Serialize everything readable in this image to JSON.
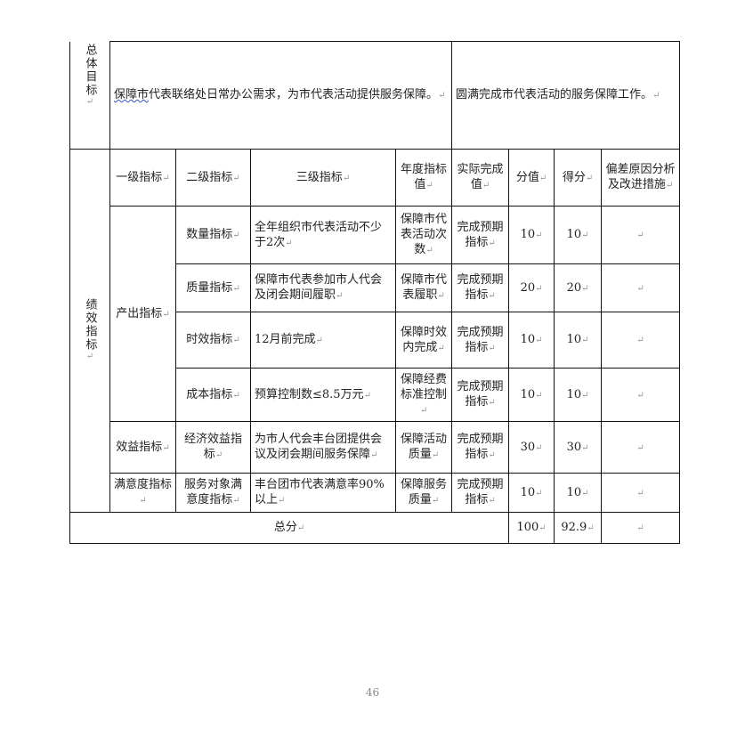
{
  "overall_goal": {
    "label": "总体目标",
    "plan_text_prefix": "保障市",
    "plan_text": "代表联络处日常办公需求，为市代表活动提供服务保障。",
    "actual_text": "圆满完成市代表活动的服务保障工作。"
  },
  "performance_label": "绩效指标",
  "headers": {
    "level1": "一级指标",
    "level2": "二级指标",
    "level3": "三级指标",
    "annual_target": "年度指标值",
    "actual_value": "实际完成值",
    "score_value": "分值",
    "score_got": "得分",
    "deviation": "偏差原因分析及改进措施"
  },
  "level1_output": "产出指标",
  "rows": [
    {
      "level1": "",
      "level2": "数量指标",
      "level3": "全年组织市代表活动不少于2次",
      "target": "保障市代表活动次数",
      "actual": "完成预期指标",
      "value": "10",
      "score": "10",
      "deviation": ""
    },
    {
      "level1": "",
      "level2": "质量指标",
      "level3": "保障市代表参加市人代会及闭会期间履职",
      "target": "保障市代表履职",
      "actual": "完成预期指标",
      "value": "20",
      "score": "20",
      "deviation": ""
    },
    {
      "level1": "",
      "level2": "时效指标",
      "level3": "12月前完成",
      "target": "保障时效内完成",
      "actual": "完成预期指标",
      "value": "10",
      "score": "10",
      "deviation": ""
    },
    {
      "level1": "",
      "level2": "成本指标",
      "level3": "预算控制数≤8.5万元",
      "target": "保障经费标准控制",
      "actual": "完成预期指标",
      "value": "10",
      "score": "10",
      "deviation": ""
    },
    {
      "level1": "效益指标",
      "level2": "经济效益指标",
      "level3": "为市人代会丰台团提供会议及闭会期间服务保障",
      "target": "保障活动质量",
      "actual": "完成预期指标",
      "value": "30",
      "score": "30",
      "deviation": ""
    },
    {
      "level1": "满意度指标",
      "level2": "服务对象满意度指标",
      "level3": "丰台团市代表满意率90%以上",
      "target": "保障服务质量",
      "actual": "完成预期指标",
      "value": "10",
      "score": "10",
      "deviation": ""
    }
  ],
  "total": {
    "label": "总分",
    "value": "100",
    "score": "92.9",
    "deviation": ""
  },
  "page_number": "46"
}
